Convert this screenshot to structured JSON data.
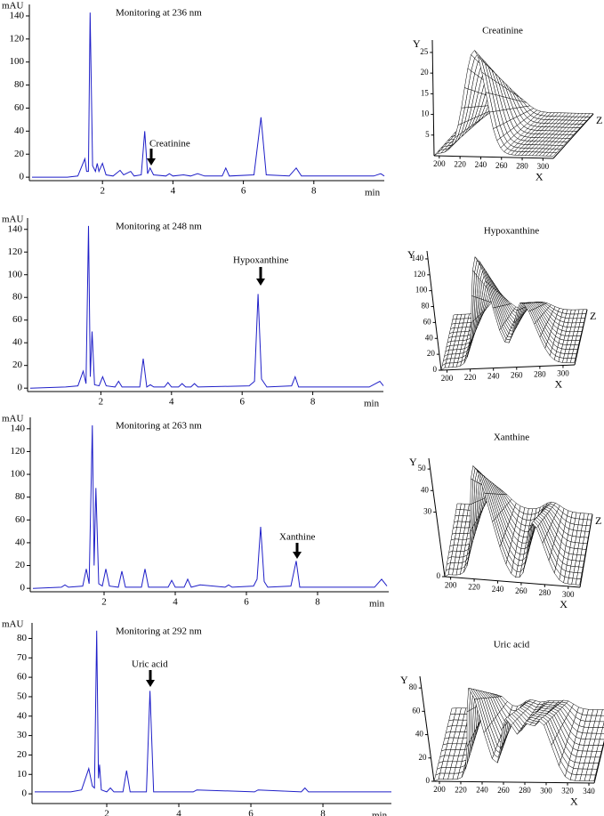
{
  "chart_data": [
    {
      "type": "line",
      "title": "Monitoring at 236 nm",
      "ylabel": "mAU",
      "xlabel": "min",
      "annotation": "Creatinine",
      "color": "#1f1fc8",
      "xlim": [
        0,
        10
      ],
      "ylim": [
        -3,
        150
      ],
      "xticks": [
        2,
        4,
        6,
        8
      ],
      "yticks": [
        0,
        20,
        40,
        60,
        80,
        100,
        120,
        140
      ],
      "x": [
        0,
        1.0,
        1.3,
        1.5,
        1.55,
        1.6,
        1.65,
        1.72,
        1.8,
        1.85,
        1.9,
        2.0,
        2.1,
        2.3,
        2.5,
        2.6,
        2.8,
        2.9,
        3.1,
        3.2,
        3.28,
        3.35,
        3.45,
        3.8,
        3.9,
        4.0,
        4.3,
        4.5,
        4.7,
        4.9,
        5.4,
        5.5,
        5.6,
        6.3,
        6.5,
        6.65,
        7.3,
        7.5,
        7.65,
        9.7,
        9.9,
        10
      ],
      "values": [
        0,
        0,
        1,
        16,
        5,
        5,
        143,
        10,
        5,
        12,
        5,
        12,
        2,
        1,
        6,
        2,
        5,
        1,
        2,
        40,
        3,
        8,
        2,
        1,
        3,
        1,
        2,
        1,
        3,
        1,
        1,
        8,
        1,
        2,
        52,
        2,
        1,
        8,
        1,
        1,
        3,
        1
      ]
    },
    {
      "type": "line",
      "title": "Monitoring at 248 nm",
      "ylabel": "mAU",
      "xlabel": "min",
      "annotation": "Hypoxanthine",
      "color": "#1f1fc8",
      "xlim": [
        0,
        10
      ],
      "ylim": [
        -3,
        150
      ],
      "xticks": [
        2,
        4,
        6,
        8
      ],
      "yticks": [
        0,
        20,
        40,
        60,
        80,
        100,
        120,
        140
      ],
      "x": [
        0,
        1.0,
        1.35,
        1.5,
        1.58,
        1.65,
        1.7,
        1.75,
        1.82,
        1.95,
        2.05,
        2.15,
        2.4,
        2.5,
        2.6,
        3.1,
        3.2,
        3.3,
        3.4,
        3.5,
        3.8,
        3.9,
        4.0,
        4.2,
        4.3,
        4.4,
        4.55,
        4.65,
        4.75,
        6.2,
        6.35,
        6.45,
        6.55,
        6.7,
        7.4,
        7.5,
        7.6,
        9.6,
        9.9,
        10
      ],
      "values": [
        0,
        1,
        2,
        15,
        4,
        143,
        10,
        50,
        3,
        2,
        10,
        2,
        1,
        6,
        1,
        1,
        26,
        1,
        3,
        1,
        1,
        5,
        1,
        1,
        4,
        1,
        1,
        4,
        1,
        2,
        6,
        83,
        8,
        1,
        2,
        10,
        1,
        1,
        6,
        2
      ]
    },
    {
      "type": "line",
      "title": "Monitoring at 263 nm",
      "ylabel": "mAU",
      "xlabel": "min",
      "annotation": "Xanthine",
      "color": "#1f1fc8",
      "xlim": [
        0,
        10
      ],
      "ylim": [
        -3,
        150
      ],
      "xticks": [
        2,
        4,
        6,
        8
      ],
      "yticks": [
        0,
        20,
        40,
        60,
        80,
        100,
        120,
        140
      ],
      "x": [
        0,
        0.8,
        0.9,
        1.0,
        1.4,
        1.5,
        1.58,
        1.67,
        1.72,
        1.77,
        1.85,
        1.95,
        2.05,
        2.15,
        2.4,
        2.5,
        2.6,
        3.05,
        3.15,
        3.25,
        3.8,
        3.9,
        4.0,
        4.25,
        4.35,
        4.45,
        4.7,
        5.4,
        5.5,
        5.6,
        6.2,
        6.3,
        6.4,
        6.5,
        6.6,
        7.25,
        7.4,
        7.5,
        9.6,
        9.8,
        9.95
      ],
      "values": [
        0,
        1,
        3,
        1,
        2,
        17,
        4,
        143,
        20,
        88,
        4,
        2,
        17,
        2,
        1,
        15,
        1,
        1,
        17,
        1,
        1,
        7,
        1,
        1,
        8,
        1,
        3,
        1,
        3,
        1,
        2,
        8,
        54,
        6,
        1,
        2,
        24,
        1,
        1,
        8,
        2
      ]
    },
    {
      "type": "line",
      "title": "Monitoring at 292 nm",
      "ylabel": "mAU",
      "xlabel": "min",
      "annotation": "Uric acid",
      "color": "#1f1fc8",
      "xlim": [
        0,
        9.9
      ],
      "ylim": [
        -5,
        88
      ],
      "xticks": [
        2,
        4,
        6,
        8
      ],
      "yticks": [
        0,
        10,
        20,
        30,
        40,
        50,
        60,
        70,
        80
      ],
      "x": [
        0,
        1.0,
        1.3,
        1.5,
        1.6,
        1.66,
        1.72,
        1.77,
        1.8,
        1.85,
        2.0,
        2.1,
        2.2,
        2.45,
        2.55,
        2.65,
        3.1,
        3.2,
        3.3,
        4.4,
        4.5,
        6.1,
        6.2,
        7.4,
        7.5,
        7.6,
        9.9
      ],
      "values": [
        1,
        1,
        2,
        13,
        4,
        3,
        84,
        8,
        15,
        2,
        1,
        3,
        1,
        1,
        12,
        1,
        1,
        53,
        1,
        1,
        2,
        1,
        2,
        1,
        3,
        1,
        1
      ]
    },
    {
      "type": "surface3d",
      "title": "Creatinine",
      "xlabel": "X",
      "ylabel": "Y",
      "zlabel": "Z",
      "xlim": [
        195,
        310
      ],
      "ylim": [
        0,
        28
      ],
      "xticks": [
        200,
        220,
        240,
        260,
        280,
        300
      ],
      "yticks": [
        5,
        10,
        15,
        20,
        25
      ]
    },
    {
      "type": "surface3d",
      "title": "Hypoxanthine",
      "xlabel": "X",
      "ylabel": "Y",
      "zlabel": "Z",
      "xlim": [
        195,
        310
      ],
      "ylim": [
        0,
        150
      ],
      "xticks": [
        200,
        220,
        240,
        260,
        280,
        300
      ],
      "yticks": [
        0,
        20,
        40,
        60,
        80,
        100,
        120,
        140
      ]
    },
    {
      "type": "surface3d",
      "title": "Xanthine",
      "xlabel": "X",
      "ylabel": "Y",
      "zlabel": "Z",
      "xlim": [
        195,
        310
      ],
      "ylim": [
        0,
        55
      ],
      "xticks": [
        200,
        220,
        240,
        260,
        280,
        300
      ],
      "yticks": [
        0,
        30,
        40,
        50
      ]
    },
    {
      "type": "surface3d",
      "title": "Uric acid",
      "xlabel": "X",
      "ylabel": "Y",
      "zlabel": "Z",
      "xlim": [
        195,
        345
      ],
      "ylim": [
        0,
        90
      ],
      "xticks": [
        200,
        220,
        240,
        260,
        280,
        300,
        320,
        340
      ],
      "yticks": [
        0,
        20,
        40,
        60,
        80
      ]
    }
  ]
}
